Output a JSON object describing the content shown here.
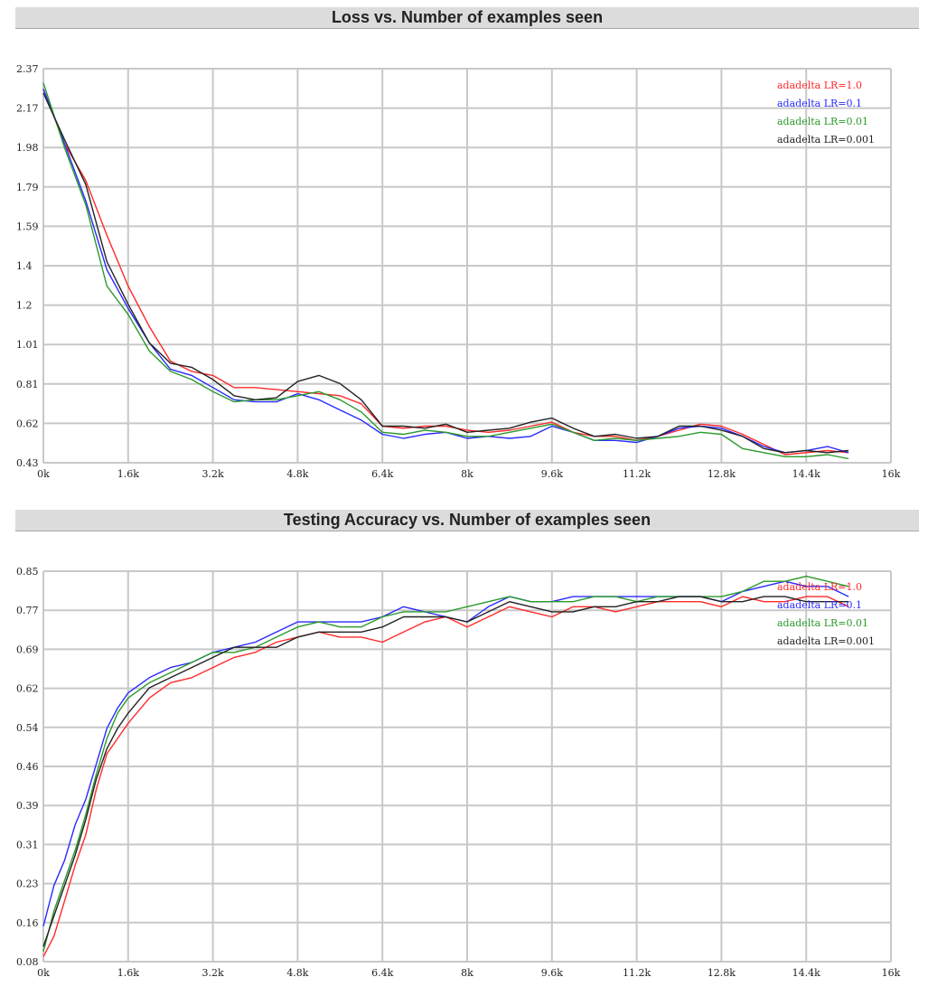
{
  "colors": {
    "series": [
      "#ff2a2a",
      "#2a2aff",
      "#2a9a2a",
      "#222222"
    ],
    "grid": "#c8c8c8",
    "header_bg": "#dcdcdc"
  },
  "chart_data": [
    {
      "type": "line",
      "title": "Loss vs. Number of examples seen",
      "xlabel": "",
      "ylabel": "",
      "x_ticks": [
        "0k",
        "1.6k",
        "3.2k",
        "4.8k",
        "6.4k",
        "8k",
        "9.6k",
        "11.2k",
        "12.8k",
        "14.4k",
        "16k"
      ],
      "y_ticks": [
        "2.37",
        "2.17",
        "1.98",
        "1.79",
        "1.59",
        "1.4",
        "1.2",
        "1.01",
        "0.81",
        "0.62",
        "0.43"
      ],
      "xlim": [
        0,
        16000
      ],
      "ylim": [
        0.43,
        2.37
      ],
      "grid": true,
      "legend": "top-right",
      "series": [
        {
          "name": "adadelta LR=1.0",
          "x": [
            0,
            400,
            800,
            1200,
            1600,
            2000,
            2400,
            2800,
            3200,
            3600,
            4000,
            4400,
            4800,
            5200,
            5600,
            6000,
            6400,
            6800,
            7200,
            7600,
            8000,
            8400,
            8800,
            9200,
            9600,
            10000,
            10400,
            10800,
            11200,
            11600,
            12000,
            12400,
            12800,
            13200,
            13600,
            14000,
            14400,
            14800,
            15200
          ],
          "y": [
            2.27,
            2.0,
            1.82,
            1.55,
            1.3,
            1.1,
            0.93,
            0.88,
            0.86,
            0.8,
            0.8,
            0.79,
            0.78,
            0.77,
            0.76,
            0.72,
            0.61,
            0.6,
            0.61,
            0.61,
            0.59,
            0.58,
            0.59,
            0.61,
            0.63,
            0.58,
            0.56,
            0.56,
            0.54,
            0.56,
            0.59,
            0.62,
            0.61,
            0.57,
            0.52,
            0.47,
            0.48,
            0.49,
            0.48
          ]
        },
        {
          "name": "adadelta LR=0.1",
          "x": [
            0,
            400,
            800,
            1200,
            1600,
            2000,
            2400,
            2800,
            3200,
            3600,
            4000,
            4400,
            4800,
            5200,
            5600,
            6000,
            6400,
            6800,
            7200,
            7600,
            8000,
            8400,
            8800,
            9200,
            9600,
            10000,
            10400,
            10800,
            11200,
            11600,
            12000,
            12400,
            12800,
            13200,
            13600,
            14000,
            14400,
            14800,
            15200
          ],
          "y": [
            2.27,
            2.0,
            1.72,
            1.38,
            1.19,
            1.02,
            0.89,
            0.86,
            0.8,
            0.74,
            0.73,
            0.73,
            0.77,
            0.74,
            0.69,
            0.64,
            0.57,
            0.55,
            0.57,
            0.58,
            0.55,
            0.56,
            0.55,
            0.56,
            0.61,
            0.58,
            0.54,
            0.54,
            0.53,
            0.56,
            0.6,
            0.61,
            0.6,
            0.56,
            0.51,
            0.48,
            0.49,
            0.51,
            0.48
          ]
        },
        {
          "name": "adadelta LR=0.01",
          "x": [
            0,
            400,
            800,
            1200,
            1600,
            2000,
            2400,
            2800,
            3200,
            3600,
            4000,
            4400,
            4800,
            5200,
            5600,
            6000,
            6400,
            6800,
            7200,
            7600,
            8000,
            8400,
            8800,
            9200,
            9600,
            10000,
            10400,
            10800,
            11200,
            11600,
            12000,
            12400,
            12800,
            13200,
            13600,
            14000,
            14400,
            14800,
            15200
          ],
          "y": [
            2.3,
            1.98,
            1.7,
            1.3,
            1.16,
            0.98,
            0.88,
            0.84,
            0.78,
            0.73,
            0.74,
            0.74,
            0.76,
            0.78,
            0.74,
            0.68,
            0.58,
            0.57,
            0.59,
            0.58,
            0.56,
            0.56,
            0.58,
            0.6,
            0.62,
            0.58,
            0.54,
            0.55,
            0.54,
            0.55,
            0.56,
            0.58,
            0.57,
            0.5,
            0.48,
            0.46,
            0.46,
            0.47,
            0.45
          ]
        },
        {
          "name": "adadelta LR=0.001",
          "x": [
            0,
            400,
            800,
            1200,
            1600,
            2000,
            2400,
            2800,
            3200,
            3600,
            4000,
            4400,
            4800,
            5200,
            5600,
            6000,
            6400,
            6800,
            7200,
            7600,
            8000,
            8400,
            8800,
            9200,
            9600,
            10000,
            10400,
            10800,
            11200,
            11600,
            12000,
            12400,
            12800,
            13200,
            13600,
            14000,
            14400,
            14800,
            15200
          ],
          "y": [
            2.25,
            2.02,
            1.8,
            1.42,
            1.21,
            1.02,
            0.92,
            0.9,
            0.84,
            0.76,
            0.74,
            0.75,
            0.83,
            0.86,
            0.82,
            0.74,
            0.61,
            0.61,
            0.6,
            0.62,
            0.58,
            0.59,
            0.6,
            0.63,
            0.65,
            0.6,
            0.56,
            0.57,
            0.55,
            0.56,
            0.61,
            0.61,
            0.59,
            0.56,
            0.5,
            0.48,
            0.49,
            0.48,
            0.49
          ]
        }
      ]
    },
    {
      "type": "line",
      "title": "Testing Accuracy vs. Number of examples seen",
      "xlabel": "",
      "ylabel": "",
      "x_ticks": [
        "0k",
        "1.6k",
        "3.2k",
        "4.8k",
        "6.4k",
        "8k",
        "9.6k",
        "11.2k",
        "12.8k",
        "14.4k",
        "16k"
      ],
      "y_ticks": [
        "0.85",
        "0.77",
        "0.69",
        "0.62",
        "0.54",
        "0.46",
        "0.39",
        "0.31",
        "0.23",
        "0.16",
        "0.08"
      ],
      "xlim": [
        0,
        16000
      ],
      "ylim": [
        0.08,
        0.85
      ],
      "grid": true,
      "legend": "top-right",
      "series": [
        {
          "name": "adadelta LR=1.0",
          "x": [
            0,
            200,
            400,
            600,
            800,
            1000,
            1200,
            1400,
            1600,
            2000,
            2400,
            2800,
            3200,
            3600,
            4000,
            4400,
            4800,
            5200,
            5600,
            6000,
            6400,
            6800,
            7200,
            7600,
            8000,
            8400,
            8800,
            9200,
            9600,
            10000,
            10400,
            10800,
            11200,
            11600,
            12000,
            12400,
            12800,
            13200,
            13600,
            14000,
            14400,
            14800,
            15200
          ],
          "y": [
            0.09,
            0.13,
            0.2,
            0.27,
            0.33,
            0.42,
            0.49,
            0.52,
            0.55,
            0.6,
            0.63,
            0.64,
            0.66,
            0.68,
            0.69,
            0.71,
            0.72,
            0.73,
            0.72,
            0.72,
            0.71,
            0.73,
            0.75,
            0.76,
            0.74,
            0.76,
            0.78,
            0.77,
            0.76,
            0.78,
            0.78,
            0.77,
            0.78,
            0.79,
            0.79,
            0.79,
            0.78,
            0.8,
            0.79,
            0.79,
            0.8,
            0.8,
            0.78
          ]
        },
        {
          "name": "adadelta LR=0.1",
          "x": [
            0,
            200,
            400,
            600,
            800,
            1000,
            1200,
            1400,
            1600,
            2000,
            2400,
            2800,
            3200,
            3600,
            4000,
            4400,
            4800,
            5200,
            5600,
            6000,
            6400,
            6800,
            7200,
            7600,
            8000,
            8400,
            8800,
            9200,
            9600,
            10000,
            10400,
            10800,
            11200,
            11600,
            12000,
            12400,
            12800,
            13200,
            13600,
            14000,
            14400,
            14800,
            15200
          ],
          "y": [
            0.15,
            0.23,
            0.28,
            0.35,
            0.4,
            0.47,
            0.54,
            0.58,
            0.61,
            0.64,
            0.66,
            0.67,
            0.69,
            0.7,
            0.71,
            0.73,
            0.75,
            0.75,
            0.75,
            0.75,
            0.76,
            0.78,
            0.77,
            0.76,
            0.75,
            0.78,
            0.8,
            0.79,
            0.79,
            0.8,
            0.8,
            0.8,
            0.8,
            0.8,
            0.8,
            0.8,
            0.79,
            0.81,
            0.82,
            0.83,
            0.82,
            0.82,
            0.8
          ]
        },
        {
          "name": "adadelta LR=0.01",
          "x": [
            0,
            200,
            400,
            600,
            800,
            1000,
            1200,
            1400,
            1600,
            2000,
            2400,
            2800,
            3200,
            3600,
            4000,
            4400,
            4800,
            5200,
            5600,
            6000,
            6400,
            6800,
            7200,
            7600,
            8000,
            8400,
            8800,
            9200,
            9600,
            10000,
            10400,
            10800,
            11200,
            11600,
            12000,
            12400,
            12800,
            13200,
            13600,
            14000,
            14400,
            14800,
            15200
          ],
          "y": [
            0.1,
            0.18,
            0.24,
            0.3,
            0.37,
            0.45,
            0.52,
            0.57,
            0.6,
            0.63,
            0.65,
            0.67,
            0.69,
            0.69,
            0.7,
            0.72,
            0.74,
            0.75,
            0.74,
            0.74,
            0.76,
            0.77,
            0.77,
            0.77,
            0.78,
            0.79,
            0.8,
            0.79,
            0.79,
            0.79,
            0.8,
            0.8,
            0.79,
            0.8,
            0.8,
            0.8,
            0.8,
            0.81,
            0.83,
            0.83,
            0.84,
            0.83,
            0.82
          ]
        },
        {
          "name": "adadelta LR=0.001",
          "x": [
            0,
            200,
            400,
            600,
            800,
            1000,
            1200,
            1400,
            1600,
            2000,
            2400,
            2800,
            3200,
            3600,
            4000,
            4400,
            4800,
            5200,
            5600,
            6000,
            6400,
            6800,
            7200,
            7600,
            8000,
            8400,
            8800,
            9200,
            9600,
            10000,
            10400,
            10800,
            11200,
            11600,
            12000,
            12400,
            12800,
            13200,
            13600,
            14000,
            14400,
            14800,
            15200
          ],
          "y": [
            0.11,
            0.17,
            0.23,
            0.29,
            0.36,
            0.44,
            0.5,
            0.54,
            0.57,
            0.62,
            0.64,
            0.66,
            0.68,
            0.7,
            0.7,
            0.7,
            0.72,
            0.73,
            0.73,
            0.73,
            0.74,
            0.76,
            0.76,
            0.76,
            0.75,
            0.77,
            0.79,
            0.78,
            0.77,
            0.77,
            0.78,
            0.78,
            0.79,
            0.79,
            0.8,
            0.8,
            0.79,
            0.79,
            0.8,
            0.8,
            0.79,
            0.79,
            0.79
          ]
        }
      ]
    }
  ]
}
